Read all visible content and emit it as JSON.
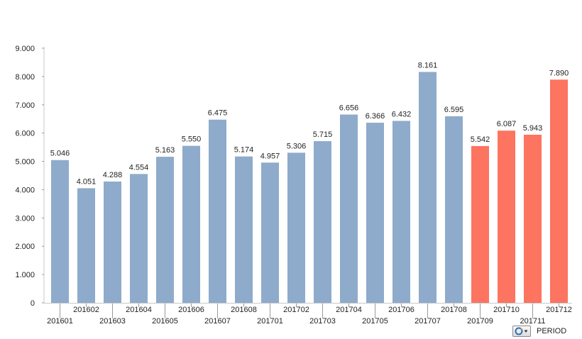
{
  "chart_data": {
    "type": "bar",
    "categories": [
      "201601",
      "201602",
      "201603",
      "201604",
      "201605",
      "201606",
      "201607",
      "201608",
      "201701",
      "201702",
      "201703",
      "201704",
      "201705",
      "201706",
      "201707",
      "201708",
      "201709",
      "201710",
      "201711",
      "201712"
    ],
    "values": [
      5046,
      4051,
      4288,
      4554,
      5163,
      5550,
      6475,
      5174,
      4957,
      5306,
      5715,
      6656,
      6366,
      6432,
      8161,
      6595,
      5542,
      6087,
      5943,
      7890
    ],
    "value_labels": [
      "5.046",
      "4.051",
      "4.288",
      "4.554",
      "5.163",
      "5.550",
      "6.475",
      "5.174",
      "4.957",
      "5.306",
      "5.715",
      "6.656",
      "6.366",
      "6.432",
      "8.161",
      "6.595",
      "5.542",
      "6.087",
      "5.943",
      "7.890"
    ],
    "bar_colors": [
      "#8eabcb",
      "#8eabcb",
      "#8eabcb",
      "#8eabcb",
      "#8eabcb",
      "#8eabcb",
      "#8eabcb",
      "#8eabcb",
      "#8eabcb",
      "#8eabcb",
      "#8eabcb",
      "#8eabcb",
      "#8eabcb",
      "#8eabcb",
      "#8eabcb",
      "#8eabcb",
      "#fd7460",
      "#fd7460",
      "#fd7460",
      "#fd7460"
    ],
    "ylim": [
      0,
      9000
    ],
    "yticks": [
      0,
      1000,
      2000,
      3000,
      4000,
      5000,
      6000,
      7000,
      8000,
      9000
    ],
    "ytick_labels": [
      "0",
      "1.000",
      "2.000",
      "3.000",
      "4.000",
      "5.000",
      "6.000",
      "7.000",
      "8.000",
      "9.000"
    ],
    "grid": false,
    "xlabel": "",
    "ylabel": "",
    "title": ""
  },
  "dimension_control": {
    "icon": "cycle-group-icon",
    "label": "PERIOD"
  }
}
